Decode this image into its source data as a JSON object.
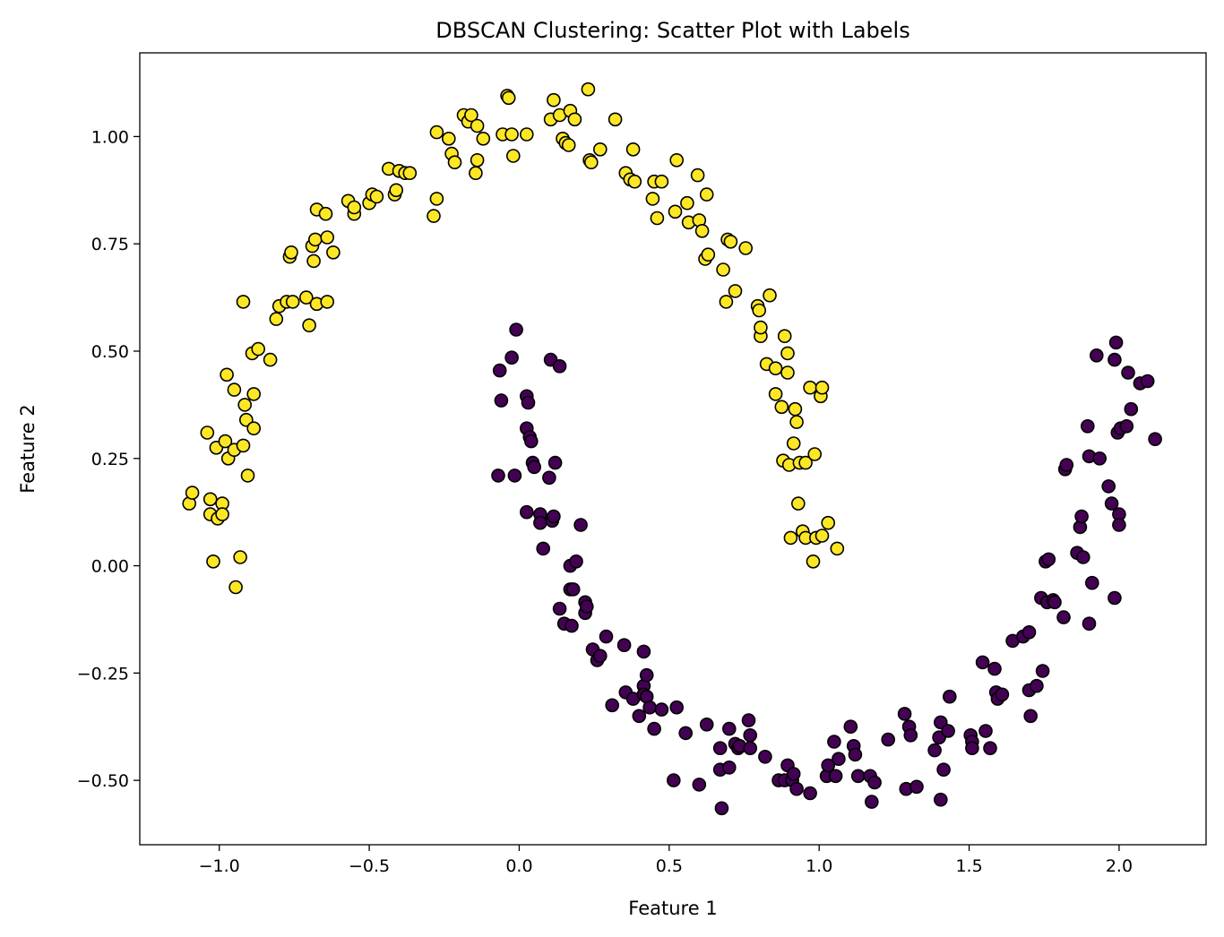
{
  "chart_data": {
    "type": "scatter",
    "title": "DBSCAN Clustering: Scatter Plot with Labels",
    "xlabel": "Feature 1",
    "ylabel": "Feature 2",
    "xlim": [
      -1.265,
      2.29
    ],
    "ylim": [
      -0.65,
      1.195
    ],
    "xticks": [
      -1.0,
      -0.5,
      0.0,
      0.5,
      1.0,
      1.5,
      2.0
    ],
    "xtick_labels": [
      "−1.0",
      "−0.5",
      "0.0",
      "0.5",
      "1.0",
      "1.5",
      "2.0"
    ],
    "yticks": [
      -0.5,
      -0.25,
      0.0,
      0.25,
      0.5,
      0.75,
      1.0
    ],
    "ytick_labels": [
      "−0.50",
      "−0.25",
      "0.00",
      "0.25",
      "0.50",
      "0.75",
      "1.00"
    ],
    "grid": false,
    "legend": "none",
    "colors": {
      "cluster_0": "#440154",
      "cluster_1": "#fde725",
      "edge": "#000000"
    },
    "series": [
      {
        "label": 1,
        "color": "#fde725",
        "points": [
          [
            -1.1,
            0.145
          ],
          [
            -1.09,
            0.17
          ],
          [
            -1.04,
            0.31
          ],
          [
            -1.03,
            0.155
          ],
          [
            -1.03,
            0.12
          ],
          [
            -1.02,
            0.01
          ],
          [
            -1.01,
            0.275
          ],
          [
            -1.005,
            0.11
          ],
          [
            -0.99,
            0.145
          ],
          [
            -0.99,
            0.12
          ],
          [
            -0.98,
            0.29
          ],
          [
            -0.975,
            0.445
          ],
          [
            -0.97,
            0.25
          ],
          [
            -0.95,
            0.41
          ],
          [
            -0.95,
            0.27
          ],
          [
            -0.945,
            -0.05
          ],
          [
            -0.93,
            0.02
          ],
          [
            -0.92,
            0.28
          ],
          [
            -0.92,
            0.615
          ],
          [
            -0.915,
            0.375
          ],
          [
            -0.91,
            0.34
          ],
          [
            -0.905,
            0.21
          ],
          [
            -0.89,
            0.495
          ],
          [
            -0.885,
            0.32
          ],
          [
            -0.885,
            0.4
          ],
          [
            -0.87,
            0.505
          ],
          [
            -0.83,
            0.48
          ],
          [
            -0.81,
            0.575
          ],
          [
            -0.8,
            0.605
          ],
          [
            -0.775,
            0.615
          ],
          [
            -0.765,
            0.72
          ],
          [
            -0.76,
            0.73
          ],
          [
            -0.755,
            0.615
          ],
          [
            -0.71,
            0.625
          ],
          [
            -0.7,
            0.56
          ],
          [
            -0.69,
            0.745
          ],
          [
            -0.685,
            0.71
          ],
          [
            -0.68,
            0.76
          ],
          [
            -0.675,
            0.83
          ],
          [
            -0.675,
            0.61
          ],
          [
            -0.645,
            0.82
          ],
          [
            -0.64,
            0.765
          ],
          [
            -0.64,
            0.615
          ],
          [
            -0.62,
            0.73
          ],
          [
            -0.57,
            0.85
          ],
          [
            -0.55,
            0.82
          ],
          [
            -0.55,
            0.835
          ],
          [
            -0.5,
            0.845
          ],
          [
            -0.49,
            0.865
          ],
          [
            -0.475,
            0.86
          ],
          [
            -0.435,
            0.925
          ],
          [
            -0.415,
            0.865
          ],
          [
            -0.41,
            0.875
          ],
          [
            -0.4,
            0.92
          ],
          [
            -0.38,
            0.915
          ],
          [
            -0.365,
            0.915
          ],
          [
            -0.285,
            0.815
          ],
          [
            -0.275,
            0.855
          ],
          [
            -0.275,
            1.01
          ],
          [
            -0.235,
            0.995
          ],
          [
            -0.225,
            0.96
          ],
          [
            -0.215,
            0.94
          ],
          [
            -0.185,
            1.05
          ],
          [
            -0.17,
            1.035
          ],
          [
            -0.16,
            1.05
          ],
          [
            -0.145,
            0.915
          ],
          [
            -0.14,
            1.025
          ],
          [
            -0.14,
            0.945
          ],
          [
            -0.12,
            0.995
          ],
          [
            -0.055,
            1.005
          ],
          [
            -0.04,
            1.095
          ],
          [
            -0.035,
            1.09
          ],
          [
            -0.025,
            1.005
          ],
          [
            -0.02,
            0.955
          ],
          [
            0.025,
            1.005
          ],
          [
            0.105,
            1.04
          ],
          [
            0.115,
            1.085
          ],
          [
            0.135,
            1.05
          ],
          [
            0.145,
            0.995
          ],
          [
            0.155,
            0.985
          ],
          [
            0.165,
            0.98
          ],
          [
            0.17,
            1.06
          ],
          [
            0.185,
            1.04
          ],
          [
            0.23,
            1.11
          ],
          [
            0.235,
            0.945
          ],
          [
            0.24,
            0.94
          ],
          [
            0.27,
            0.97
          ],
          [
            0.32,
            1.04
          ],
          [
            0.355,
            0.915
          ],
          [
            0.37,
            0.9
          ],
          [
            0.38,
            0.97
          ],
          [
            0.385,
            0.895
          ],
          [
            0.445,
            0.855
          ],
          [
            0.45,
            0.895
          ],
          [
            0.46,
            0.81
          ],
          [
            0.475,
            0.895
          ],
          [
            0.52,
            0.825
          ],
          [
            0.525,
            0.945
          ],
          [
            0.56,
            0.845
          ],
          [
            0.565,
            0.8
          ],
          [
            0.595,
            0.91
          ],
          [
            0.6,
            0.805
          ],
          [
            0.61,
            0.78
          ],
          [
            0.62,
            0.715
          ],
          [
            0.625,
            0.865
          ],
          [
            0.63,
            0.725
          ],
          [
            0.68,
            0.69
          ],
          [
            0.69,
            0.615
          ],
          [
            0.695,
            0.76
          ],
          [
            0.705,
            0.755
          ],
          [
            0.72,
            0.64
          ],
          [
            0.755,
            0.74
          ],
          [
            0.795,
            0.605
          ],
          [
            0.8,
            0.595
          ],
          [
            0.805,
            0.535
          ],
          [
            0.805,
            0.555
          ],
          [
            0.825,
            0.47
          ],
          [
            0.835,
            0.63
          ],
          [
            0.855,
            0.46
          ],
          [
            0.855,
            0.4
          ],
          [
            0.875,
            0.37
          ],
          [
            0.88,
            0.245
          ],
          [
            0.885,
            0.535
          ],
          [
            0.895,
            0.45
          ],
          [
            0.895,
            0.495
          ],
          [
            0.9,
            0.235
          ],
          [
            0.905,
            0.065
          ],
          [
            0.915,
            0.285
          ],
          [
            0.92,
            0.365
          ],
          [
            0.925,
            0.335
          ],
          [
            0.93,
            0.145
          ],
          [
            0.935,
            0.24
          ],
          [
            0.945,
            0.08
          ],
          [
            0.955,
            0.24
          ],
          [
            0.955,
            0.065
          ],
          [
            0.97,
            0.415
          ],
          [
            0.98,
            0.01
          ],
          [
            0.985,
            0.26
          ],
          [
            0.99,
            0.065
          ],
          [
            1.005,
            0.395
          ],
          [
            1.01,
            0.415
          ],
          [
            1.01,
            0.07
          ],
          [
            1.03,
            0.1
          ],
          [
            1.06,
            0.04
          ]
        ]
      },
      {
        "label": 0,
        "color": "#440154",
        "points": [
          [
            -0.07,
            0.21
          ],
          [
            -0.065,
            0.455
          ],
          [
            -0.06,
            0.385
          ],
          [
            -0.025,
            0.485
          ],
          [
            -0.015,
            0.21
          ],
          [
            -0.01,
            0.55
          ],
          [
            0.025,
            0.395
          ],
          [
            0.025,
            0.125
          ],
          [
            0.025,
            0.32
          ],
          [
            0.03,
            0.38
          ],
          [
            0.035,
            0.3
          ],
          [
            0.04,
            0.29
          ],
          [
            0.045,
            0.24
          ],
          [
            0.05,
            0.23
          ],
          [
            0.07,
            0.12
          ],
          [
            0.07,
            0.1
          ],
          [
            0.08,
            0.04
          ],
          [
            0.1,
            0.205
          ],
          [
            0.105,
            0.48
          ],
          [
            0.11,
            0.105
          ],
          [
            0.115,
            0.115
          ],
          [
            0.12,
            0.24
          ],
          [
            0.135,
            0.465
          ],
          [
            0.135,
            -0.1
          ],
          [
            0.15,
            -0.135
          ],
          [
            0.17,
            0.0
          ],
          [
            0.17,
            -0.055
          ],
          [
            0.175,
            -0.14
          ],
          [
            0.18,
            -0.055
          ],
          [
            0.19,
            0.01
          ],
          [
            0.205,
            0.095
          ],
          [
            0.22,
            -0.085
          ],
          [
            0.22,
            -0.11
          ],
          [
            0.225,
            -0.095
          ],
          [
            0.245,
            -0.195
          ],
          [
            0.26,
            -0.22
          ],
          [
            0.27,
            -0.21
          ],
          [
            0.29,
            -0.165
          ],
          [
            0.31,
            -0.325
          ],
          [
            0.35,
            -0.185
          ],
          [
            0.355,
            -0.295
          ],
          [
            0.38,
            -0.31
          ],
          [
            0.4,
            -0.35
          ],
          [
            0.415,
            -0.2
          ],
          [
            0.415,
            -0.28
          ],
          [
            0.415,
            -0.3
          ],
          [
            0.425,
            -0.255
          ],
          [
            0.425,
            -0.305
          ],
          [
            0.435,
            -0.33
          ],
          [
            0.45,
            -0.38
          ],
          [
            0.475,
            -0.335
          ],
          [
            0.515,
            -0.5
          ],
          [
            0.525,
            -0.33
          ],
          [
            0.555,
            -0.39
          ],
          [
            0.6,
            -0.51
          ],
          [
            0.625,
            -0.37
          ],
          [
            0.67,
            -0.425
          ],
          [
            0.67,
            -0.475
          ],
          [
            0.675,
            -0.565
          ],
          [
            0.7,
            -0.38
          ],
          [
            0.7,
            -0.47
          ],
          [
            0.72,
            -0.415
          ],
          [
            0.73,
            -0.425
          ],
          [
            0.735,
            -0.42
          ],
          [
            0.765,
            -0.36
          ],
          [
            0.77,
            -0.395
          ],
          [
            0.77,
            -0.425
          ],
          [
            0.82,
            -0.445
          ],
          [
            0.865,
            -0.5
          ],
          [
            0.885,
            -0.5
          ],
          [
            0.895,
            -0.465
          ],
          [
            0.91,
            -0.5
          ],
          [
            0.915,
            -0.485
          ],
          [
            0.925,
            -0.52
          ],
          [
            0.97,
            -0.53
          ],
          [
            1.025,
            -0.49
          ],
          [
            1.03,
            -0.465
          ],
          [
            1.05,
            -0.41
          ],
          [
            1.055,
            -0.49
          ],
          [
            1.065,
            -0.45
          ],
          [
            1.105,
            -0.375
          ],
          [
            1.115,
            -0.42
          ],
          [
            1.12,
            -0.44
          ],
          [
            1.13,
            -0.49
          ],
          [
            1.17,
            -0.49
          ],
          [
            1.175,
            -0.55
          ],
          [
            1.185,
            -0.505
          ],
          [
            1.23,
            -0.405
          ],
          [
            1.285,
            -0.345
          ],
          [
            1.29,
            -0.52
          ],
          [
            1.3,
            -0.375
          ],
          [
            1.305,
            -0.395
          ],
          [
            1.325,
            -0.515
          ],
          [
            1.385,
            -0.43
          ],
          [
            1.4,
            -0.4
          ],
          [
            1.405,
            -0.365
          ],
          [
            1.405,
            -0.545
          ],
          [
            1.415,
            -0.475
          ],
          [
            1.43,
            -0.385
          ],
          [
            1.435,
            -0.305
          ],
          [
            1.505,
            -0.395
          ],
          [
            1.51,
            -0.41
          ],
          [
            1.51,
            -0.425
          ],
          [
            1.545,
            -0.225
          ],
          [
            1.555,
            -0.385
          ],
          [
            1.57,
            -0.425
          ],
          [
            1.585,
            -0.24
          ],
          [
            1.59,
            -0.295
          ],
          [
            1.595,
            -0.31
          ],
          [
            1.61,
            -0.3
          ],
          [
            1.645,
            -0.175
          ],
          [
            1.68,
            -0.165
          ],
          [
            1.7,
            -0.155
          ],
          [
            1.7,
            -0.29
          ],
          [
            1.705,
            -0.35
          ],
          [
            1.725,
            -0.28
          ],
          [
            1.74,
            -0.075
          ],
          [
            1.745,
            -0.245
          ],
          [
            1.755,
            0.01
          ],
          [
            1.76,
            -0.085
          ],
          [
            1.765,
            0.015
          ],
          [
            1.78,
            -0.08
          ],
          [
            1.785,
            -0.085
          ],
          [
            1.815,
            -0.12
          ],
          [
            1.82,
            0.225
          ],
          [
            1.825,
            0.235
          ],
          [
            1.86,
            0.03
          ],
          [
            1.87,
            0.09
          ],
          [
            1.875,
            0.115
          ],
          [
            1.88,
            0.02
          ],
          [
            1.895,
            0.325
          ],
          [
            1.9,
            0.255
          ],
          [
            1.9,
            -0.135
          ],
          [
            1.91,
            -0.04
          ],
          [
            1.925,
            0.49
          ],
          [
            1.935,
            0.25
          ],
          [
            1.965,
            0.185
          ],
          [
            1.975,
            0.145
          ],
          [
            1.985,
            0.48
          ],
          [
            1.985,
            -0.075
          ],
          [
            1.99,
            0.52
          ],
          [
            1.995,
            0.31
          ],
          [
            2.0,
            0.12
          ],
          [
            2.005,
            0.32
          ],
          [
            2.0,
            0.095
          ],
          [
            2.025,
            0.325
          ],
          [
            2.03,
            0.45
          ],
          [
            2.04,
            0.365
          ],
          [
            2.07,
            0.425
          ],
          [
            2.095,
            0.43
          ],
          [
            2.12,
            0.295
          ]
        ]
      }
    ]
  }
}
